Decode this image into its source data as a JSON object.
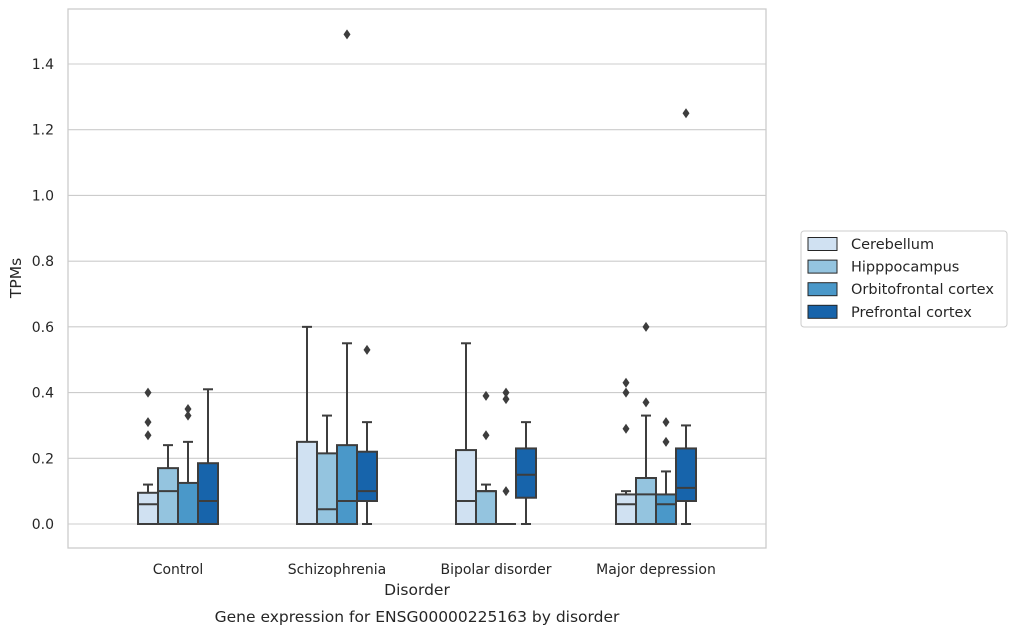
{
  "chart_data": {
    "type": "box",
    "title": "Gene expression for ENSG00000225163 by disorder",
    "xlabel": "Disorder",
    "ylabel": "TPMs",
    "ylim": [
      -0.07,
      1.57
    ],
    "yticks": [
      0.0,
      0.2,
      0.4,
      0.6,
      0.8,
      1.0,
      1.2,
      1.4
    ],
    "grid": true,
    "legend_placement": "center-right",
    "categories": [
      "Control",
      "Schizophrenia",
      "Bipolar disorder",
      "Major depression"
    ],
    "series": [
      {
        "name": "Cerebellum",
        "color": "#d0e1f2",
        "boxes": [
          {
            "q1": 0.0,
            "median": 0.06,
            "q3": 0.095,
            "whisker_low": 0.0,
            "whisker_high": 0.12,
            "outliers": [
              0.27,
              0.31,
              0.4
            ]
          },
          {
            "q1": 0.0,
            "median": 0.0,
            "q3": 0.25,
            "whisker_low": 0.0,
            "whisker_high": 0.6,
            "outliers": []
          },
          {
            "q1": 0.0,
            "median": 0.07,
            "q3": 0.225,
            "whisker_low": 0.0,
            "whisker_high": 0.55,
            "outliers": []
          },
          {
            "q1": 0.0,
            "median": 0.06,
            "q3": 0.09,
            "whisker_low": 0.0,
            "whisker_high": 0.1,
            "outliers": [
              0.29,
              0.4,
              0.43
            ]
          }
        ]
      },
      {
        "name": "Hipppocampus",
        "color": "#94c4df",
        "boxes": [
          {
            "q1": 0.0,
            "median": 0.1,
            "q3": 0.17,
            "whisker_low": 0.0,
            "whisker_high": 0.24,
            "outliers": []
          },
          {
            "q1": 0.0,
            "median": 0.045,
            "q3": 0.215,
            "whisker_low": 0.0,
            "whisker_high": 0.33,
            "outliers": []
          },
          {
            "q1": 0.0,
            "median": 0.1,
            "q3": 0.1,
            "whisker_low": 0.0,
            "whisker_high": 0.12,
            "outliers": [
              0.27,
              0.39
            ]
          },
          {
            "q1": 0.0,
            "median": 0.09,
            "q3": 0.14,
            "whisker_low": 0.0,
            "whisker_high": 0.33,
            "outliers": [
              0.37,
              0.6
            ]
          }
        ]
      },
      {
        "name": "Orbitofrontal cortex",
        "color": "#4a98c9",
        "boxes": [
          {
            "q1": 0.0,
            "median": 0.0,
            "q3": 0.125,
            "whisker_low": 0.0,
            "whisker_high": 0.25,
            "outliers": [
              0.33,
              0.35
            ]
          },
          {
            "q1": 0.0,
            "median": 0.07,
            "q3": 0.24,
            "whisker_low": 0.0,
            "whisker_high": 0.55,
            "outliers": [
              1.49
            ]
          },
          {
            "q1": 0.0,
            "median": 0.0,
            "q3": 0.0,
            "whisker_low": 0.0,
            "whisker_high": 0.0,
            "outliers": [
              0.1,
              0.38,
              0.4
            ]
          },
          {
            "q1": 0.0,
            "median": 0.06,
            "q3": 0.09,
            "whisker_low": 0.0,
            "whisker_high": 0.16,
            "outliers": [
              0.25,
              0.31
            ]
          }
        ]
      },
      {
        "name": "Prefrontal cortex",
        "color": "#1764ab",
        "boxes": [
          {
            "q1": 0.0,
            "median": 0.07,
            "q3": 0.185,
            "whisker_low": 0.0,
            "whisker_high": 0.41,
            "outliers": []
          },
          {
            "q1": 0.07,
            "median": 0.1,
            "q3": 0.22,
            "whisker_low": 0.0,
            "whisker_high": 0.31,
            "outliers": [
              0.53
            ]
          },
          {
            "q1": 0.08,
            "median": 0.15,
            "q3": 0.23,
            "whisker_low": 0.0,
            "whisker_high": 0.31,
            "outliers": []
          },
          {
            "q1": 0.07,
            "median": 0.11,
            "q3": 0.23,
            "whisker_low": 0.0,
            "whisker_high": 0.3,
            "outliers": [
              1.25
            ]
          }
        ]
      }
    ]
  }
}
